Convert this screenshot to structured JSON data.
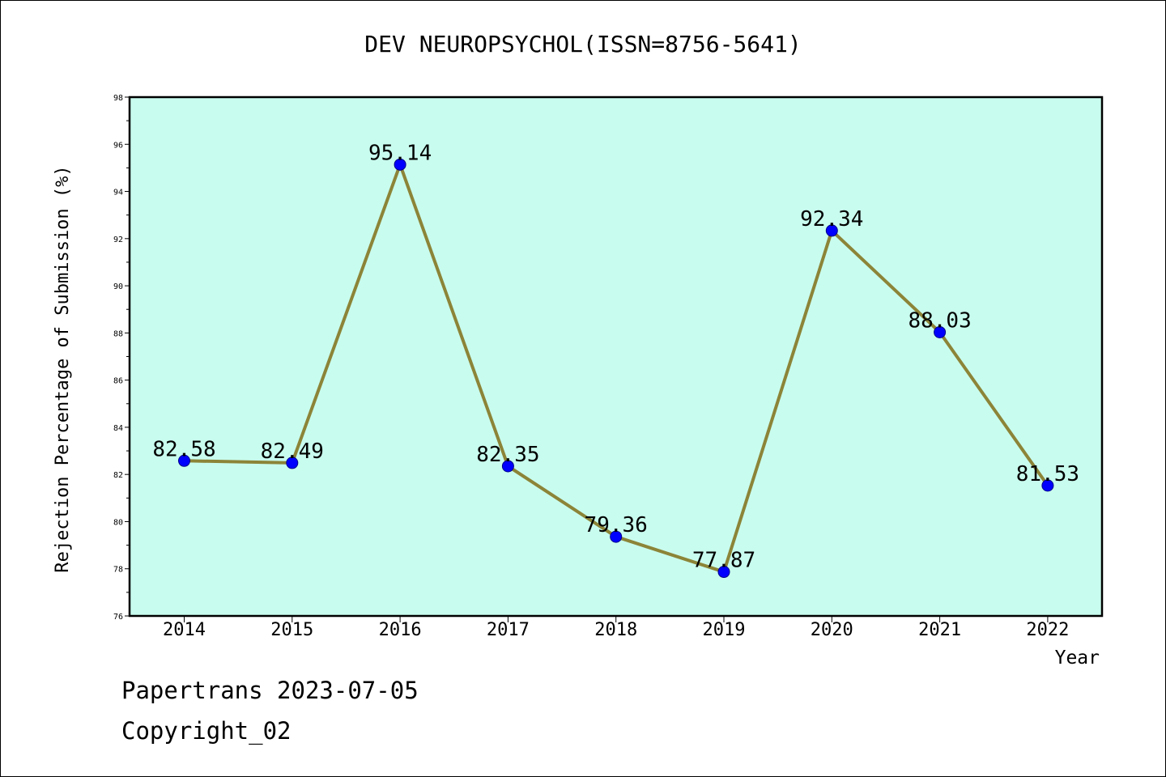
{
  "chart_data": {
    "type": "line",
    "title": "DEV NEUROPSYCHOL(ISSN=8756-5641)",
    "xlabel": "Year",
    "ylabel": "Rejection Percentage of Submission (%)",
    "x": [
      "2014",
      "2015",
      "2016",
      "2017",
      "2018",
      "2019",
      "2020",
      "2021",
      "2022"
    ],
    "values": [
      82.58,
      82.49,
      95.14,
      82.35,
      79.36,
      77.87,
      92.34,
      88.03,
      81.53
    ],
    "data_labels": [
      "82.58",
      "82.49",
      "95.14",
      "82.35",
      "79.36",
      "77.87",
      "92.34",
      "88.03",
      "81.53"
    ],
    "ylim": [
      76,
      98
    ],
    "yticks": [
      "76",
      "78",
      "80",
      "82",
      "84",
      "86",
      "88",
      "90",
      "92",
      "94",
      "96",
      "98"
    ],
    "grid": false,
    "colors": {
      "plot_background": "#c8fcee",
      "line": "#8c8438",
      "marker": "#0000ff"
    }
  },
  "footer": {
    "line1": "Papertrans 2023-07-05",
    "line2": "Copyright_02"
  }
}
